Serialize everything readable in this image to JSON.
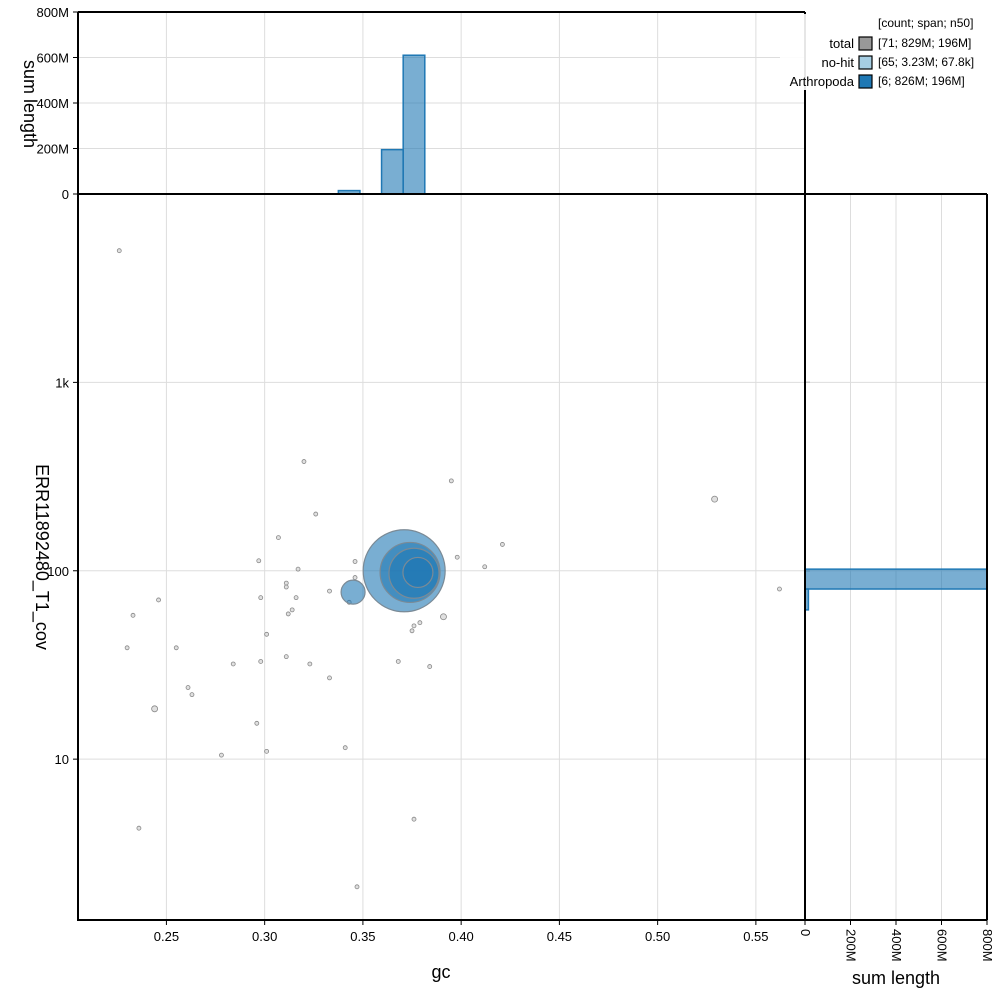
{
  "chart_data": {
    "type": "scatter",
    "x_axis": {
      "label": "gc",
      "range": [
        0.205,
        0.575
      ],
      "ticks": [
        "0.25",
        "0.30",
        "0.35",
        "0.40",
        "0.45",
        "0.50",
        "0.55"
      ],
      "tick_values": [
        0.25,
        0.3,
        0.35,
        0.4,
        0.45,
        0.5,
        0.55
      ]
    },
    "y_axis": {
      "label": "ERR11892480_T1_cov",
      "scale": "log",
      "range": [
        1.4,
        10000
      ],
      "ticks": [
        "10",
        "100",
        "1k"
      ],
      "tick_values": [
        10,
        100,
        1000
      ]
    },
    "top_hist": {
      "ylabel": "sum length",
      "ylim": [
        0,
        800000000
      ],
      "ticks": [
        "0",
        "200M",
        "400M",
        "600M",
        "800M"
      ],
      "tick_values": [
        0,
        200000000,
        400000000,
        600000000,
        800000000
      ],
      "bins": [
        {
          "x0": 0.3375,
          "x1": 0.3485,
          "value": 15000000
        },
        {
          "x0": 0.3595,
          "x1": 0.3705,
          "value": 195000000
        },
        {
          "x0": 0.3705,
          "x1": 0.3815,
          "value": 610000000
        }
      ]
    },
    "right_hist": {
      "xlabel": "sum length",
      "xlim": [
        0,
        800000000
      ],
      "ticks": [
        "0",
        "200M",
        "400M",
        "600M",
        "800M"
      ],
      "tick_values": [
        0,
        200000000,
        400000000,
        600000000,
        800000000
      ],
      "bins": [
        {
          "y0": 80,
          "y1": 102,
          "value": 800000000
        },
        {
          "y0": 62,
          "y1": 80,
          "value": 15000000
        }
      ]
    },
    "legend": {
      "header": "[count; span; n50]",
      "position": "top-right",
      "items": [
        {
          "name": "total",
          "stats": "[71; 829M; 196M]",
          "color": "#999999"
        },
        {
          "name": "no-hit",
          "stats": "[65; 3.23M; 67.8k]",
          "color": "#a6cee3"
        },
        {
          "name": "Arthropoda",
          "stats": "[6; 826M; 196M]",
          "color": "#1f78b4"
        }
      ]
    },
    "series": [
      {
        "name": "no-hit",
        "color": "#cccccc",
        "points": [
          [
            0.226,
            5000,
            1
          ],
          [
            0.32,
            380,
            1
          ],
          [
            0.395,
            300,
            1
          ],
          [
            0.529,
            240,
            1.5
          ],
          [
            0.326,
            200,
            1
          ],
          [
            0.307,
            150,
            1
          ],
          [
            0.421,
            138,
            1
          ],
          [
            0.398,
            118,
            1
          ],
          [
            0.297,
            113,
            1
          ],
          [
            0.346,
            112,
            1
          ],
          [
            0.412,
            105,
            1
          ],
          [
            0.317,
            102,
            1
          ],
          [
            0.346,
            92,
            1
          ],
          [
            0.311,
            86,
            1
          ],
          [
            0.311,
            82,
            1
          ],
          [
            0.562,
            80,
            1
          ],
          [
            0.333,
            78,
            1
          ],
          [
            0.298,
            72,
            1
          ],
          [
            0.246,
            70,
            1
          ],
          [
            0.316,
            72,
            1
          ],
          [
            0.343,
            68,
            1
          ],
          [
            0.314,
            62,
            1
          ],
          [
            0.312,
            59,
            1
          ],
          [
            0.233,
            58,
            1
          ],
          [
            0.391,
            57,
            1.5
          ],
          [
            0.379,
            53,
            1
          ],
          [
            0.376,
            51,
            1
          ],
          [
            0.375,
            48,
            1
          ],
          [
            0.301,
            46,
            1
          ],
          [
            0.23,
            39,
            1
          ],
          [
            0.255,
            39,
            1
          ],
          [
            0.311,
            35,
            1
          ],
          [
            0.298,
            33,
            1
          ],
          [
            0.368,
            33,
            1
          ],
          [
            0.284,
            32,
            1
          ],
          [
            0.323,
            32,
            1
          ],
          [
            0.384,
            31,
            1
          ],
          [
            0.333,
            27,
            1
          ],
          [
            0.261,
            24,
            1
          ],
          [
            0.263,
            22,
            1
          ],
          [
            0.244,
            18.5,
            1.5
          ],
          [
            0.296,
            15.5,
            1
          ],
          [
            0.341,
            11.5,
            1
          ],
          [
            0.301,
            11,
            1
          ],
          [
            0.278,
            10.5,
            1
          ],
          [
            0.376,
            4.8,
            1
          ],
          [
            0.236,
            4.3,
            1
          ],
          [
            0.347,
            2.1,
            1
          ]
        ]
      },
      {
        "name": "Arthropoda",
        "color": "#1f78b4",
        "points": [
          [
            0.345,
            77,
            12
          ],
          [
            0.371,
            100,
            41
          ],
          [
            0.374,
            98,
            30
          ],
          [
            0.376,
            97,
            25
          ],
          [
            0.378,
            98,
            15
          ]
        ]
      }
    ]
  }
}
